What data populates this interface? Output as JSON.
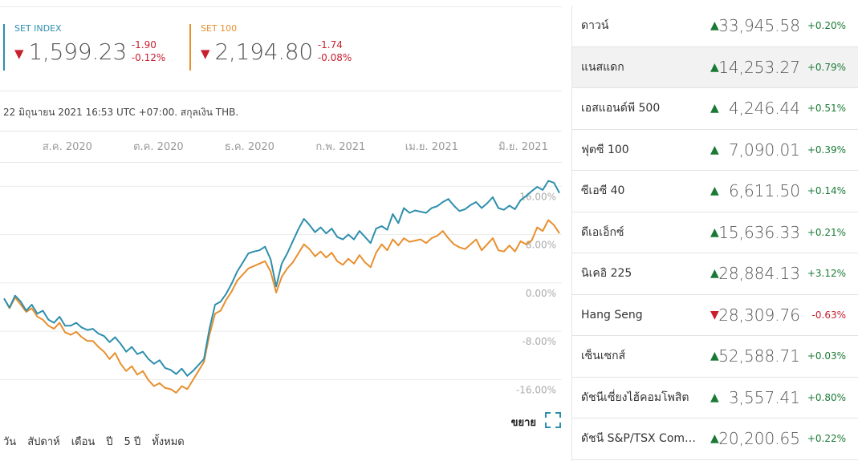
{
  "indices": [
    {
      "name": "SET INDEX",
      "value": "1,599.23",
      "change": "-1.90",
      "change_pct": "-0.12%",
      "direction": "down",
      "color": "#2e8fad"
    },
    {
      "name": "SET 100",
      "value": "2,194.80",
      "change": "-1.74",
      "change_pct": "-0.08%",
      "direction": "down",
      "color": "#e88f2e"
    }
  ],
  "arrow_glyphs": {
    "up": "▲",
    "down": "▼"
  },
  "timestamp": "22 มิถุนายน 2021 16:53 UTC +07:00. สกุลเงิน THB.",
  "expand_label": "ขยาย",
  "icons": {
    "expand": "expand-icon"
  },
  "range_buttons": [
    "วัน",
    "สัปดาห์",
    "เดือน",
    "ปี",
    "5 ปี",
    "ทั้งหมด"
  ],
  "chart_data": {
    "type": "line",
    "x_tick_labels": [
      "ส.ค. 2020",
      "ต.ค. 2020",
      "ธ.ค. 2020",
      "ก.พ. 2021",
      "เม.ย. 2021",
      "มิ.ย. 2021"
    ],
    "y_tick_labels": [
      "16.00%",
      "8.00%",
      "0.00%",
      "-8.00%",
      "-16.00%"
    ],
    "y_ticks": [
      16,
      8,
      0,
      -8,
      -16
    ],
    "ylim": [
      -19,
      21.5
    ],
    "x_range": [
      0,
      100
    ],
    "x_tick_positions": [
      11.4,
      27.8,
      44.2,
      60.6,
      77.0,
      93.5
    ],
    "series": [
      {
        "name": "SET INDEX",
        "color": "#2e8fad",
        "x": [
          0,
          1,
          2,
          3,
          4,
          5,
          6,
          7,
          8,
          9,
          10,
          11,
          12,
          13,
          14,
          15,
          16,
          17,
          18,
          19,
          20,
          21,
          22,
          23,
          24,
          25,
          26,
          27,
          28,
          29,
          30,
          31,
          32,
          33,
          34,
          35,
          36,
          37,
          38,
          39,
          40,
          41,
          42,
          43,
          44,
          45,
          46,
          47,
          48,
          49,
          50,
          51,
          52,
          53,
          54,
          55,
          56,
          57,
          58,
          59,
          60,
          61,
          62,
          63,
          64,
          65,
          66,
          67,
          68,
          69,
          70,
          71,
          72,
          73,
          74,
          75,
          76,
          77,
          78,
          79,
          80,
          81,
          82,
          83,
          84,
          85,
          86,
          87,
          88,
          89,
          90,
          91,
          92,
          93,
          94,
          95,
          96,
          97,
          98,
          99,
          100
        ],
        "y": [
          -1.0,
          -2.5,
          -0.5,
          -1.5,
          -3.0,
          -2.0,
          -3.5,
          -3.0,
          -4.5,
          -5.0,
          -4.0,
          -5.5,
          -5.5,
          -5.0,
          -5.8,
          -6.2,
          -6.0,
          -6.8,
          -7.2,
          -8.2,
          -7.4,
          -8.5,
          -9.8,
          -9.0,
          -10.2,
          -9.8,
          -11.0,
          -11.8,
          -11.2,
          -12.5,
          -12.8,
          -13.5,
          -12.6,
          -13.8,
          -13.0,
          -12.0,
          -11.0,
          -6.0,
          -2.0,
          -1.5,
          -0.2,
          1.5,
          3.5,
          5.0,
          6.5,
          6.8,
          7.0,
          7.6,
          5.5,
          1.0,
          4.8,
          6.5,
          8.5,
          10.5,
          12.2,
          11.2,
          10.0,
          10.8,
          9.8,
          10.6,
          9.2,
          8.8,
          9.6,
          8.8,
          10.2,
          9.2,
          8.2,
          10.6,
          11.0,
          10.4,
          13.0,
          11.5,
          14.0,
          13.2,
          13.6,
          13.4,
          13.2,
          14.0,
          14.3,
          15.0,
          15.5,
          14.4,
          13.5,
          13.8,
          14.5,
          15.0,
          14.0,
          14.8,
          15.8,
          14.0,
          13.7,
          14.4,
          13.8,
          15.3,
          16.0,
          16.8,
          17.5,
          17.0,
          18.5,
          18.2,
          16.5
        ]
      },
      {
        "name": "SET 100",
        "color": "#e88f2e",
        "x": [
          0,
          1,
          2,
          3,
          4,
          5,
          6,
          7,
          8,
          9,
          10,
          11,
          12,
          13,
          14,
          15,
          16,
          17,
          18,
          19,
          20,
          21,
          22,
          23,
          24,
          25,
          26,
          27,
          28,
          29,
          30,
          31,
          32,
          33,
          34,
          35,
          36,
          37,
          38,
          39,
          40,
          41,
          42,
          43,
          44,
          45,
          46,
          47,
          48,
          49,
          50,
          51,
          52,
          53,
          54,
          55,
          56,
          57,
          58,
          59,
          60,
          61,
          62,
          63,
          64,
          65,
          66,
          67,
          68,
          69,
          70,
          71,
          72,
          73,
          74,
          75,
          76,
          77,
          78,
          79,
          80,
          81,
          82,
          83,
          84,
          85,
          86,
          87,
          88,
          89,
          90,
          91,
          92,
          93,
          94,
          95,
          96,
          97,
          98,
          99,
          100
        ],
        "y": [
          -1.0,
          -2.6,
          -0.8,
          -2.0,
          -3.2,
          -2.6,
          -4.0,
          -4.5,
          -5.5,
          -6.0,
          -5.0,
          -6.6,
          -7.0,
          -6.5,
          -7.4,
          -8.0,
          -8.0,
          -9.0,
          -9.8,
          -11.0,
          -10.0,
          -11.8,
          -13.0,
          -12.2,
          -13.6,
          -13.0,
          -14.5,
          -15.5,
          -15.0,
          -15.8,
          -16.0,
          -16.6,
          -15.5,
          -16.0,
          -14.5,
          -13.0,
          -11.5,
          -7.0,
          -3.5,
          -3.0,
          -1.2,
          0.2,
          2.0,
          3.0,
          4.0,
          4.4,
          4.8,
          5.2,
          3.5,
          0.0,
          2.6,
          4.0,
          5.0,
          6.5,
          8.0,
          7.2,
          6.0,
          6.8,
          5.8,
          6.6,
          5.2,
          4.6,
          5.6,
          4.8,
          6.2,
          5.0,
          4.2,
          6.6,
          8.0,
          7.0,
          8.8,
          7.8,
          9.0,
          8.4,
          8.6,
          8.8,
          8.2,
          9.0,
          9.4,
          10.2,
          9.0,
          8.0,
          7.5,
          7.2,
          8.0,
          8.8,
          7.0,
          8.0,
          9.0,
          7.0,
          6.8,
          7.8,
          6.8,
          8.5,
          8.0,
          8.6,
          10.8,
          10.2,
          12.0,
          11.2,
          9.8
        ]
      }
    ]
  },
  "market_list": [
    {
      "name": "ดาวน์",
      "value": "33,945.58",
      "change_pct": "+0.20%",
      "direction": "up",
      "selected": false
    },
    {
      "name": "แนสแดก",
      "value": "14,253.27",
      "change_pct": "+0.79%",
      "direction": "up",
      "selected": true
    },
    {
      "name": "เอสแอนด์พี 500",
      "value": "4,246.44",
      "change_pct": "+0.51%",
      "direction": "up",
      "selected": false
    },
    {
      "name": "ฟุตซี 100",
      "value": "7,090.01",
      "change_pct": "+0.39%",
      "direction": "up",
      "selected": false
    },
    {
      "name": "ซีเอซี 40",
      "value": "6,611.50",
      "change_pct": "+0.14%",
      "direction": "up",
      "selected": false
    },
    {
      "name": "ดีเอเอ็กซ์",
      "value": "15,636.33",
      "change_pct": "+0.21%",
      "direction": "up",
      "selected": false
    },
    {
      "name": "นิเคอิ 225",
      "value": "28,884.13",
      "change_pct": "+3.12%",
      "direction": "up",
      "selected": false
    },
    {
      "name": "Hang Seng",
      "value": "28,309.76",
      "change_pct": "-0.63%",
      "direction": "down",
      "selected": false
    },
    {
      "name": "เซ็นเซกส์",
      "value": "52,588.71",
      "change_pct": "+0.03%",
      "direction": "up",
      "selected": false
    },
    {
      "name": "ดัชนีเซี่ยงไฮ้คอมโพสิต",
      "value": "3,557.41",
      "change_pct": "+0.80%",
      "direction": "up",
      "selected": false
    },
    {
      "name": "ดัชนี S&P/TSX Com…",
      "value": "20,200.65",
      "change_pct": "+0.22%",
      "direction": "up",
      "selected": false
    }
  ]
}
